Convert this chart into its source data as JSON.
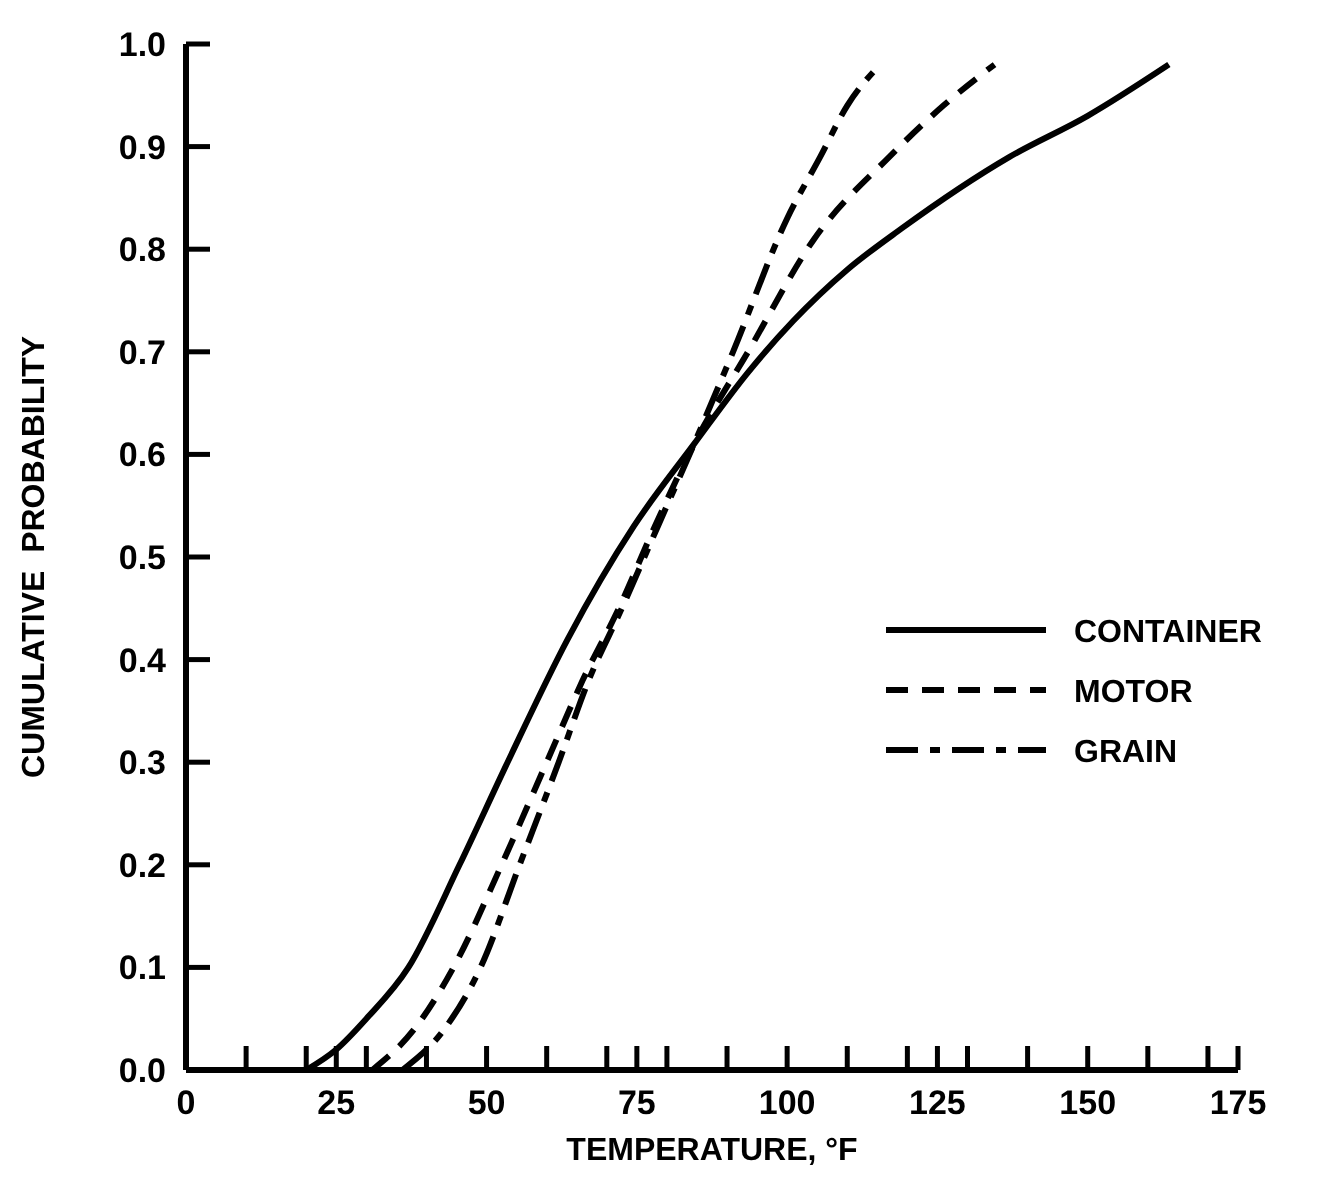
{
  "chart_data": {
    "type": "line",
    "xlabel": "TEMPERATURE, °F",
    "ylabel": "CUMULATIVE  PROBABILITY",
    "xlim": [
      0,
      175
    ],
    "ylim": [
      0,
      1
    ],
    "xticks": [
      0,
      {
        "value": 10,
        "label": null
      },
      {
        "value": 20,
        "label": null
      },
      25,
      {
        "value": 30,
        "label": null
      },
      {
        "value": 40,
        "label": null
      },
      50,
      {
        "value": 60,
        "label": null
      },
      {
        "value": 70,
        "label": null
      },
      75,
      {
        "value": 80,
        "label": null
      },
      {
        "value": 90,
        "label": null
      },
      100,
      {
        "value": 110,
        "label": null
      },
      {
        "value": 120,
        "label": null
      },
      125,
      {
        "value": 130,
        "label": null
      },
      {
        "value": 140,
        "label": null
      },
      150,
      {
        "value": 160,
        "label": null
      },
      {
        "value": 170,
        "label": null
      },
      175
    ],
    "yticks": [
      {
        "value": 0,
        "label": "0.0"
      },
      0.1,
      0.2,
      0.3,
      0.4,
      0.5,
      0.6,
      0.7,
      0.8,
      0.9,
      {
        "value": 1,
        "label": "1.0"
      }
    ],
    "grid": false,
    "legend": "right",
    "marker": "none",
    "series": [
      {
        "name": "CONTAINER",
        "color": "#000000",
        "line_style": "solid",
        "x": [
          20,
          25,
          30,
          37,
          45.5,
          53.5,
          63.5,
          74.5,
          84.5,
          93.5,
          101,
          110,
          119,
          137,
          150,
          163.5
        ],
        "values": [
          0,
          0.02,
          0.05,
          0.1,
          0.2,
          0.3,
          0.42,
          0.53,
          0.61,
          0.68,
          0.73,
          0.78,
          0.82,
          0.89,
          0.93,
          0.98
        ]
      },
      {
        "name": "MOTOR",
        "color": "#000000",
        "line_style": "dashed",
        "x": [
          31,
          38,
          44.5,
          52.5,
          60,
          66,
          72,
          78,
          84.5,
          93.5,
          104.5,
          117,
          126,
          134.5
        ],
        "values": [
          0,
          0.04,
          0.1,
          0.2,
          0.3,
          0.38,
          0.45,
          0.53,
          0.61,
          0.7,
          0.81,
          0.89,
          0.94,
          0.98
        ]
      },
      {
        "name": "GRAIN",
        "color": "#000000",
        "line_style": "dashdot",
        "x": [
          36,
          43,
          49,
          55.5,
          62,
          67,
          72.5,
          78.5,
          84.5,
          91,
          100,
          105.5,
          110,
          115.5
        ],
        "values": [
          0,
          0.04,
          0.1,
          0.2,
          0.3,
          0.38,
          0.45,
          0.53,
          0.61,
          0.7,
          0.83,
          0.89,
          0.94,
          0.98
        ]
      }
    ]
  }
}
